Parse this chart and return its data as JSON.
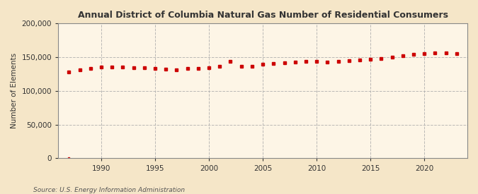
{
  "title": "Annual District of Columbia Natural Gas Number of Residential Consumers",
  "ylabel": "Number of Elements",
  "source": "Source: U.S. Energy Information Administration",
  "background_color": "#f5e6c8",
  "plot_background_color": "#fdf5e6",
  "grid_color": "#aaaaaa",
  "line_color": "#cc0000",
  "xlim": [
    1986,
    2024
  ],
  "ylim": [
    0,
    200000
  ],
  "yticks": [
    0,
    50000,
    100000,
    150000,
    200000
  ],
  "xticks": [
    1990,
    1995,
    2000,
    2005,
    2010,
    2015,
    2020
  ],
  "years": [
    1987,
    1988,
    1989,
    1990,
    1991,
    1992,
    1993,
    1994,
    1995,
    1996,
    1997,
    1998,
    1999,
    2000,
    2001,
    2002,
    2003,
    2004,
    2005,
    2006,
    2007,
    2008,
    2009,
    2010,
    2011,
    2012,
    2013,
    2014,
    2015,
    2016,
    2017,
    2018,
    2019,
    2020,
    2021,
    2022,
    2023
  ],
  "values": [
    128000,
    131000,
    133000,
    135000,
    135000,
    135000,
    134000,
    134000,
    133000,
    132000,
    131000,
    133000,
    133000,
    134000,
    136000,
    144000,
    137000,
    136000,
    140000,
    141000,
    142000,
    143000,
    144000,
    144000,
    143000,
    144000,
    145000,
    146000,
    147000,
    148000,
    150000,
    152000,
    154000,
    155000,
    156000,
    156000,
    155000
  ]
}
